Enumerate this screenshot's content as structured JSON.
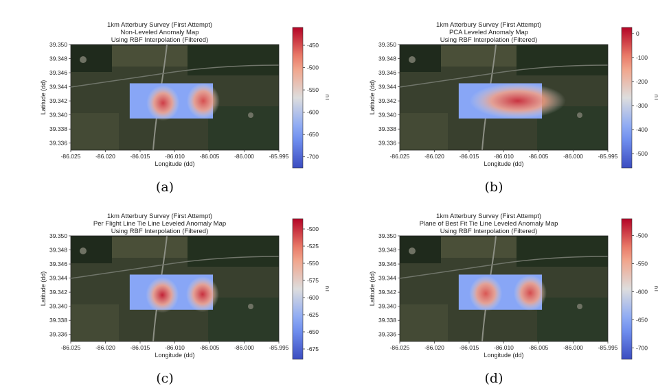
{
  "chart_data": [
    {
      "type": "heatmap",
      "title_lines": [
        "1km Atterbury Survey (First Attempt)",
        "Non-Leveled Anomaly Map",
        "Using RBF Interpolation (Filtered)"
      ],
      "xlabel": "Longitude (dd)",
      "ylabel": "Latitude (dd)",
      "xticks": [
        "-86.025",
        "-86.020",
        "-86.015",
        "-86.010",
        "-86.005",
        "-86.000",
        "-85.995"
      ],
      "yticks": [
        "39.350",
        "39.348",
        "39.346",
        "39.344",
        "39.342",
        "39.340",
        "39.338",
        "39.336"
      ],
      "xlim": [
        -86.025,
        -85.995
      ],
      "ylim": [
        39.335,
        39.35
      ],
      "colorbar_label": "nT",
      "colorbar_ticks": [
        "-450",
        "-500",
        "-550",
        "-600",
        "-650",
        "-700"
      ],
      "colorbar_range": [
        -725,
        -410
      ],
      "colormap": "coolwarm",
      "caption": "(a)",
      "survey_extent": {
        "lon": [
          -86.0165,
          -86.0045
        ],
        "lat": [
          39.3395,
          39.3445
        ]
      },
      "hotspots": [
        {
          "lon": -86.0117,
          "lat": 39.3417,
          "value": -440
        },
        {
          "lon": -86.0059,
          "lat": 39.342,
          "value": -450
        }
      ]
    },
    {
      "type": "heatmap",
      "title_lines": [
        "1km Atterbury Survey (First Attempt)",
        "PCA Leveled Anomaly Map",
        "Using RBF Interpolation (Filtered)"
      ],
      "xlabel": "Longitude (dd)",
      "ylabel": "Latitude (dd)",
      "xticks": [
        "-86.025",
        "-86.020",
        "-86.015",
        "-86.010",
        "-86.005",
        "-86.000",
        "-85.995"
      ],
      "yticks": [
        "39.350",
        "39.348",
        "39.346",
        "39.344",
        "39.342",
        "39.340",
        "39.338",
        "39.336"
      ],
      "xlim": [
        -86.025,
        -85.995
      ],
      "ylim": [
        39.335,
        39.35
      ],
      "colorbar_label": "nT",
      "colorbar_ticks": [
        "0",
        "-100",
        "-200",
        "-300",
        "-400",
        "-500"
      ],
      "colorbar_range": [
        -560,
        25
      ],
      "colormap": "coolwarm",
      "caption": "(b)",
      "survey_extent": {
        "lon": [
          -86.0165,
          -86.0045
        ],
        "lat": [
          39.3395,
          39.3445
        ]
      },
      "hotspots": [
        {
          "lon": -86.008,
          "lat": 39.342,
          "value": -20
        }
      ]
    },
    {
      "type": "heatmap",
      "title_lines": [
        "1km Atterbury Survey (First Attempt)",
        "Per Flight Line Tie Line Leveled Anomaly Map",
        "Using RBF Interpolation (Filtered)"
      ],
      "xlabel": "Longitude (dd)",
      "ylabel": "Latitude (dd)",
      "xticks": [
        "-86.025",
        "-86.020",
        "-86.015",
        "-86.010",
        "-86.005",
        "-86.000",
        "-85.995"
      ],
      "yticks": [
        "39.350",
        "39.348",
        "39.346",
        "39.344",
        "39.342",
        "39.340",
        "39.338",
        "39.336"
      ],
      "xlim": [
        -86.025,
        -85.995
      ],
      "ylim": [
        39.335,
        39.35
      ],
      "colorbar_label": "nT",
      "colorbar_ticks": [
        "-500",
        "-525",
        "-550",
        "-575",
        "-600",
        "-625",
        "-650",
        "-675"
      ],
      "colorbar_range": [
        -690,
        -485
      ],
      "colormap": "coolwarm",
      "caption": "(c)",
      "survey_extent": {
        "lon": [
          -86.0165,
          -86.0045
        ],
        "lat": [
          39.3395,
          39.3445
        ]
      },
      "hotspots": [
        {
          "lon": -86.0118,
          "lat": 39.3416,
          "value": -495
        },
        {
          "lon": -86.006,
          "lat": 39.3417,
          "value": -500
        }
      ]
    },
    {
      "type": "heatmap",
      "title_lines": [
        "1km Atterbury Survey (First Attempt)",
        "Plane of Best Fit Tie Line Leveled Anomaly Map",
        "Using RBF Interpolation (Filtered)"
      ],
      "xlabel": "Longitude (dd)",
      "ylabel": "Latitude (dd)",
      "xticks": [
        "-86.025",
        "-86.020",
        "-86.015",
        "-86.010",
        "-86.005",
        "-86.000",
        "-85.995"
      ],
      "yticks": [
        "39.350",
        "39.348",
        "39.346",
        "39.344",
        "39.342",
        "39.340",
        "39.338",
        "39.336"
      ],
      "xlim": [
        -86.025,
        -85.995
      ],
      "ylim": [
        39.335,
        39.35
      ],
      "colorbar_label": "nT",
      "colorbar_ticks": [
        "-500",
        "-550",
        "-600",
        "-650",
        "-700"
      ],
      "colorbar_range": [
        -720,
        -470
      ],
      "colormap": "coolwarm",
      "caption": "(d)",
      "survey_extent": {
        "lon": [
          -86.0165,
          -86.0045
        ],
        "lat": [
          39.3395,
          39.3445
        ]
      },
      "hotspots": [
        {
          "lon": -86.0126,
          "lat": 39.3418,
          "value": -505
        },
        {
          "lon": -86.0062,
          "lat": 39.3419,
          "value": -500
        }
      ]
    }
  ]
}
